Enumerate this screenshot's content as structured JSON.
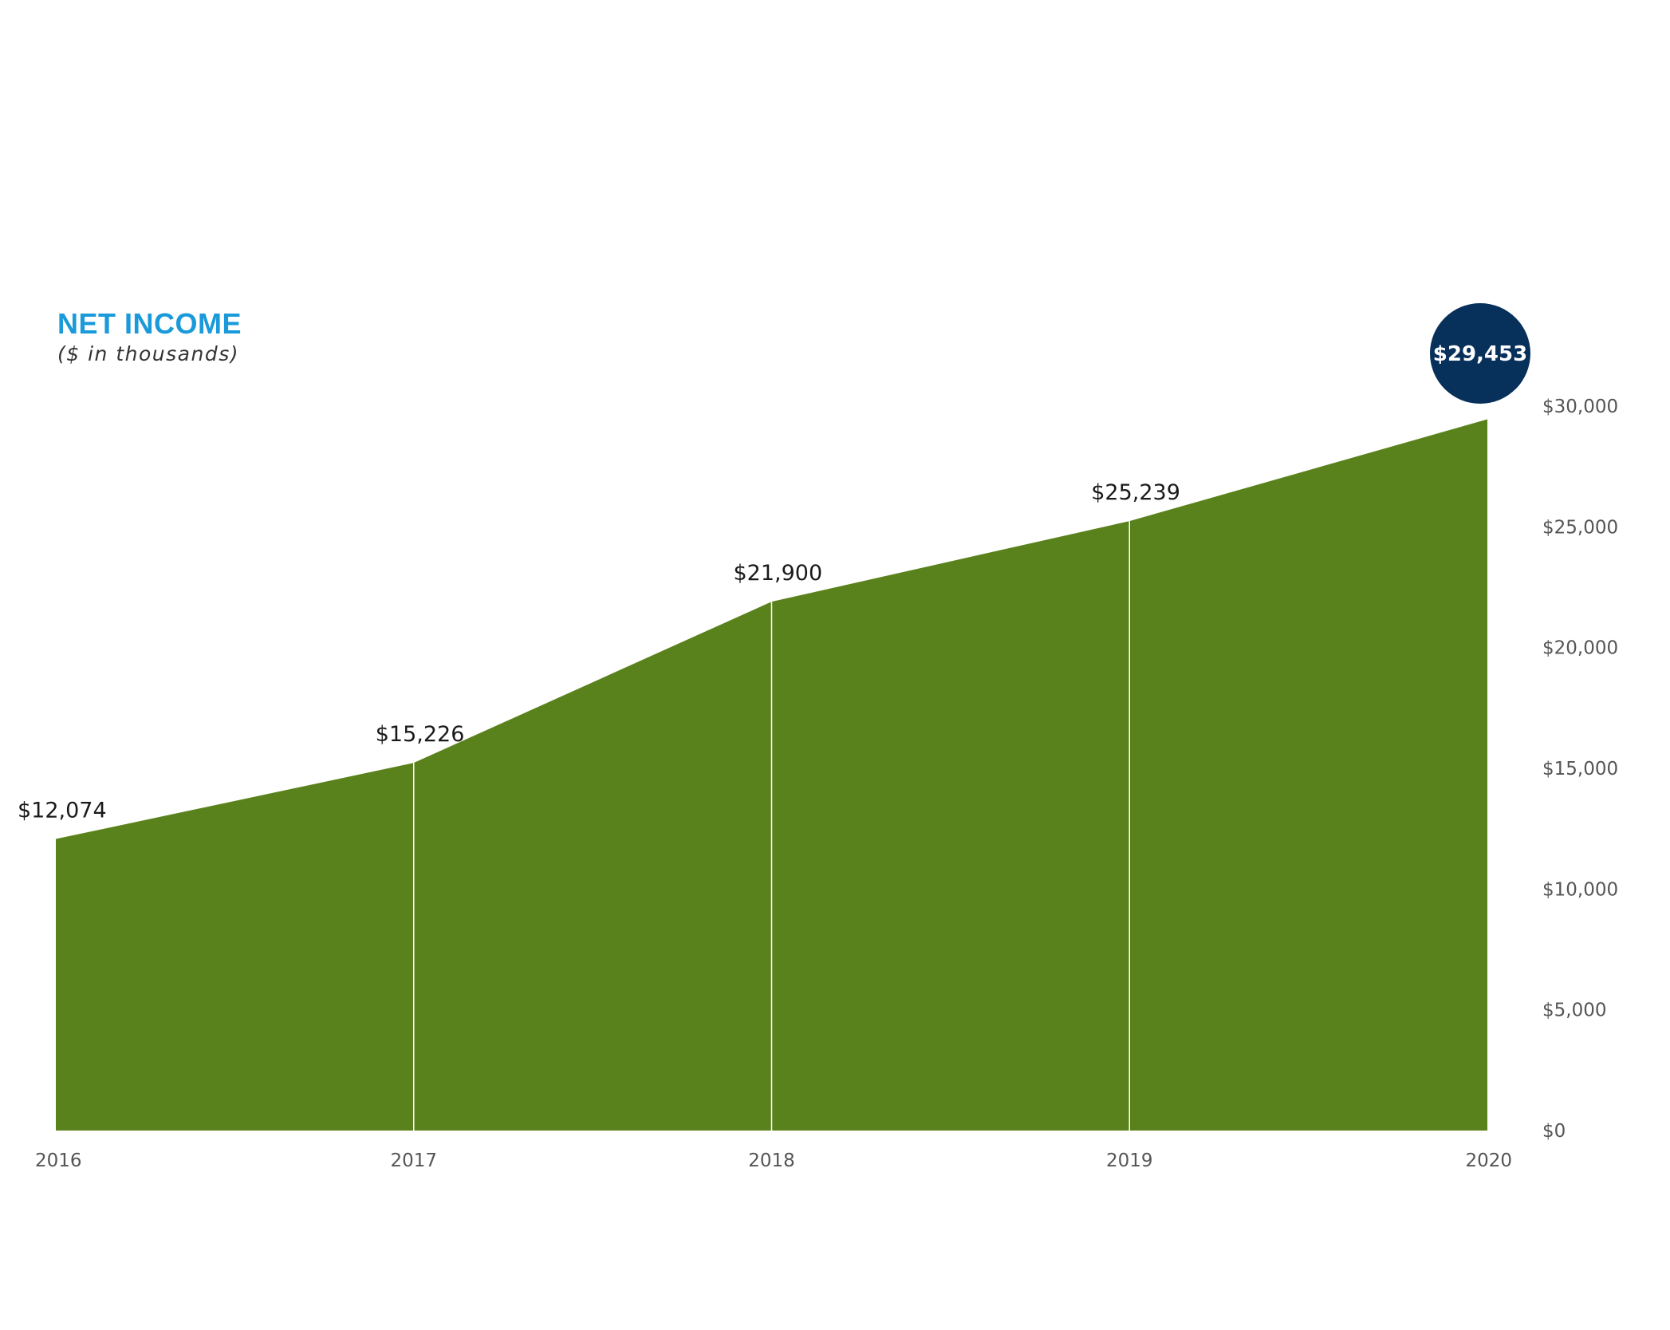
{
  "chart_data": {
    "type": "area",
    "title": "NET INCOME",
    "subtitle": "($ in thousands)",
    "x": [
      "2016",
      "2017",
      "2018",
      "2019",
      "2020"
    ],
    "values": [
      12074,
      15226,
      21900,
      25239,
      29453
    ],
    "data_labels": [
      "$12,074",
      "$15,226",
      "$21,900",
      "$25,239",
      "$29,453"
    ],
    "highlight_index": 4,
    "y_ticks": [
      0,
      5000,
      10000,
      15000,
      20000,
      25000,
      30000
    ],
    "y_tick_labels": [
      "$0",
      "$5,000",
      "$10,000",
      "$15,000",
      "$20,000",
      "$25,000",
      "$30,000"
    ],
    "ylim": [
      0,
      30000
    ],
    "y_axis_position": "right",
    "grid": false,
    "colors": {
      "fill": "#5a821c",
      "divider": "#ffffff",
      "title": "#1a9ad9",
      "highlight": "#07305a"
    }
  }
}
